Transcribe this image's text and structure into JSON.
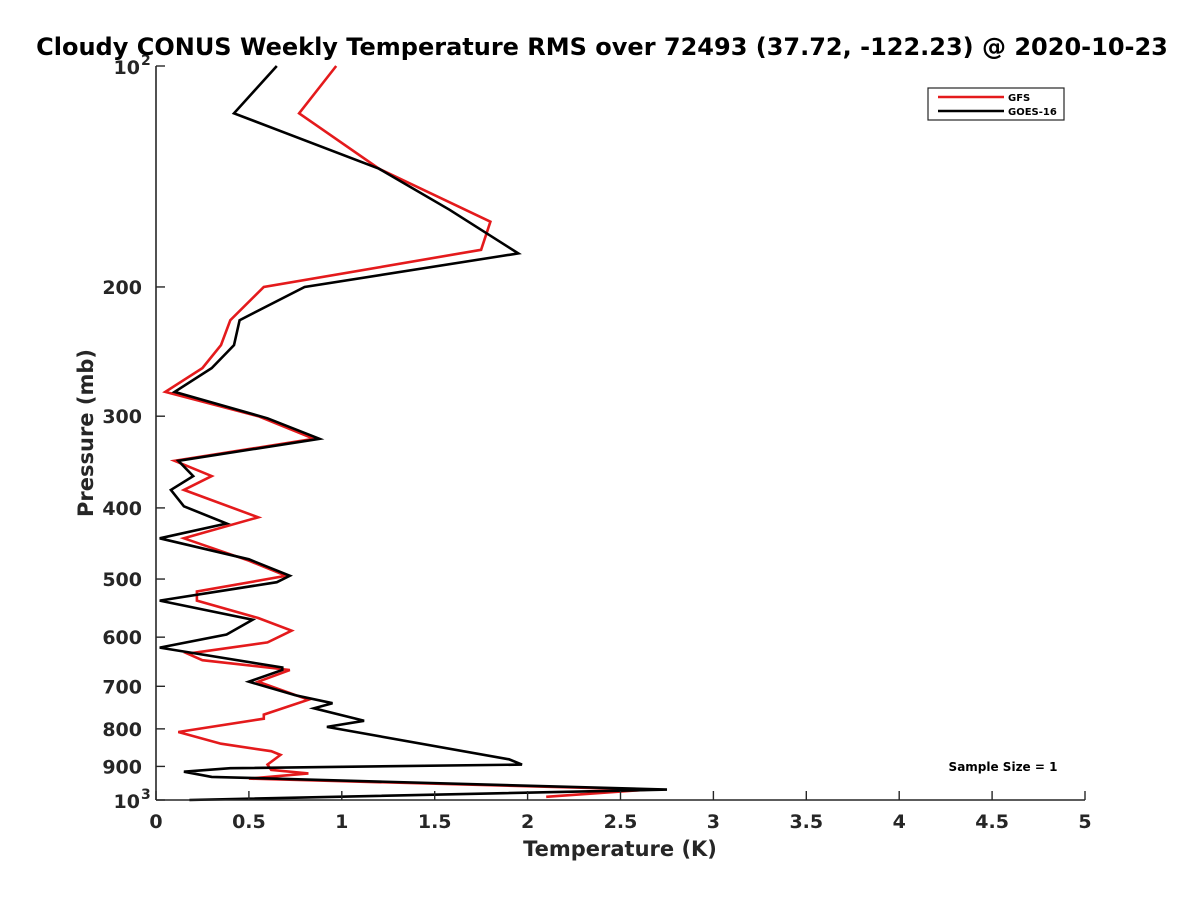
{
  "chart_data": {
    "type": "line",
    "title": "Cloudy CONUS Weekly Temperature RMS over 72493 (37.72, -122.23) @ 2020-10-23",
    "xlabel": "Temperature (K)",
    "ylabel": "Pressure (mb)",
    "xlim": [
      0,
      5
    ],
    "ylim": [
      100,
      1000
    ],
    "y_scale": "log",
    "y_reversed": true,
    "x_ticks": [
      {
        "value": 0,
        "label": "0"
      },
      {
        "value": 0.5,
        "label": "0.5"
      },
      {
        "value": 1,
        "label": "1"
      },
      {
        "value": 1.5,
        "label": "1.5"
      },
      {
        "value": 2,
        "label": "2"
      },
      {
        "value": 2.5,
        "label": "2.5"
      },
      {
        "value": 3,
        "label": "3"
      },
      {
        "value": 3.5,
        "label": "3.5"
      },
      {
        "value": 4,
        "label": "4"
      },
      {
        "value": 4.5,
        "label": "4.5"
      },
      {
        "value": 5,
        "label": "5"
      }
    ],
    "y_ticks": [
      {
        "value": 100,
        "base": "10",
        "exp": "2"
      },
      {
        "value": 200,
        "base": "200",
        "exp": ""
      },
      {
        "value": 300,
        "base": "300",
        "exp": ""
      },
      {
        "value": 400,
        "base": "400",
        "exp": ""
      },
      {
        "value": 500,
        "base": "500",
        "exp": ""
      },
      {
        "value": 600,
        "base": "600",
        "exp": ""
      },
      {
        "value": 700,
        "base": "700",
        "exp": ""
      },
      {
        "value": 800,
        "base": "800",
        "exp": ""
      },
      {
        "value": 900,
        "base": "900",
        "exp": ""
      },
      {
        "value": 1000,
        "base": "10",
        "exp": "3"
      }
    ],
    "legend_position": "top-right",
    "grid": false,
    "annotation": "Sample Size = 1",
    "series": [
      {
        "name": "GFS",
        "color": "#e41a1c",
        "points": [
          [
            0.97,
            100
          ],
          [
            0.77,
            116
          ],
          [
            1.2,
            138
          ],
          [
            1.8,
            163
          ],
          [
            1.75,
            178
          ],
          [
            0.58,
            200
          ],
          [
            0.4,
            222
          ],
          [
            0.35,
            240
          ],
          [
            0.25,
            258
          ],
          [
            0.05,
            278
          ],
          [
            0.55,
            300
          ],
          [
            0.85,
            322
          ],
          [
            0.1,
            345
          ],
          [
            0.3,
            362
          ],
          [
            0.15,
            378
          ],
          [
            0.55,
            412
          ],
          [
            0.15,
            440
          ],
          [
            0.5,
            472
          ],
          [
            0.7,
            495
          ],
          [
            0.22,
            520
          ],
          [
            0.22,
            535
          ],
          [
            0.55,
            565
          ],
          [
            0.73,
            588
          ],
          [
            0.6,
            610
          ],
          [
            0.17,
            632
          ],
          [
            0.25,
            645
          ],
          [
            0.72,
            665
          ],
          [
            0.55,
            690
          ],
          [
            0.82,
            730
          ],
          [
            0.58,
            765
          ],
          [
            0.58,
            775
          ],
          [
            0.12,
            808
          ],
          [
            0.35,
            838
          ],
          [
            0.62,
            858
          ],
          [
            0.67,
            868
          ],
          [
            0.6,
            895
          ],
          [
            0.62,
            910
          ],
          [
            0.82,
            920
          ],
          [
            0.5,
            935
          ],
          [
            2.65,
            968
          ],
          [
            2.1,
            990
          ]
        ]
      },
      {
        "name": "GOES-16",
        "color": "#000000",
        "points": [
          [
            0.65,
            100
          ],
          [
            0.42,
            116
          ],
          [
            1.2,
            138
          ],
          [
            1.58,
            157
          ],
          [
            1.95,
            180
          ],
          [
            0.8,
            200
          ],
          [
            0.45,
            222
          ],
          [
            0.42,
            240
          ],
          [
            0.3,
            258
          ],
          [
            0.1,
            278
          ],
          [
            0.6,
            302
          ],
          [
            0.88,
            322
          ],
          [
            0.12,
            345
          ],
          [
            0.2,
            362
          ],
          [
            0.08,
            378
          ],
          [
            0.15,
            398
          ],
          [
            0.38,
            420
          ],
          [
            0.02,
            440
          ],
          [
            0.5,
            470
          ],
          [
            0.72,
            495
          ],
          [
            0.65,
            505
          ],
          [
            0.02,
            535
          ],
          [
            0.52,
            568
          ],
          [
            0.38,
            595
          ],
          [
            0.02,
            620
          ],
          [
            0.68,
            660
          ],
          [
            0.68,
            665
          ],
          [
            0.5,
            690
          ],
          [
            0.75,
            720
          ],
          [
            0.95,
            738
          ],
          [
            0.85,
            750
          ],
          [
            1.12,
            780
          ],
          [
            0.92,
            795
          ],
          [
            1.9,
            880
          ],
          [
            1.97,
            895
          ],
          [
            0.4,
            905
          ],
          [
            0.15,
            915
          ],
          [
            0.3,
            930
          ],
          [
            2.75,
            968
          ],
          [
            0.18,
            1000
          ]
        ]
      }
    ]
  }
}
